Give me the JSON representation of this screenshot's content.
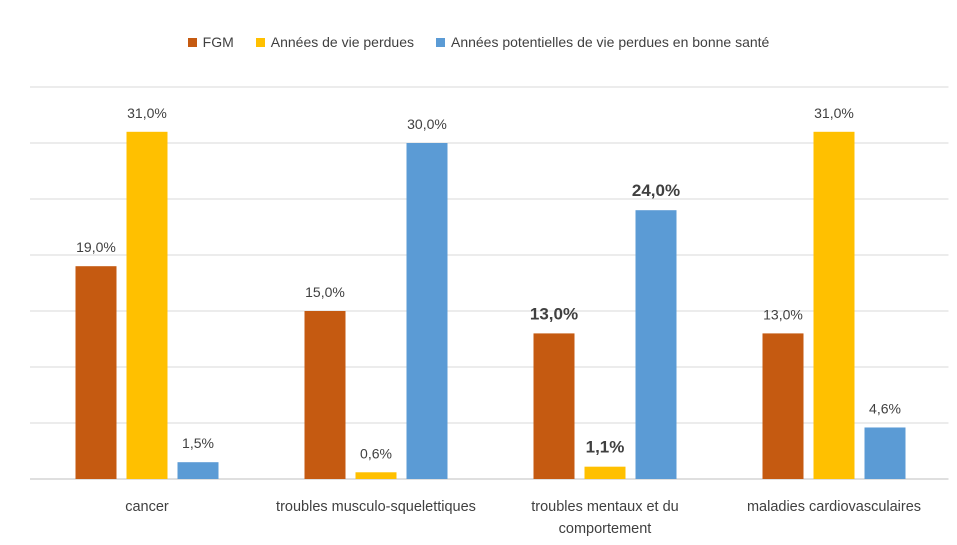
{
  "chart_data": {
    "type": "bar",
    "categories": [
      "cancer",
      "troubles musculo-squelettiques",
      "troubles mentaux et du comportement",
      "maladies cardiovasculaires"
    ],
    "series": [
      {
        "name": "FGM",
        "color": "#c55a11",
        "values": [
          19.0,
          15.0,
          13.0,
          13.0
        ],
        "value_labels": [
          "19,0%",
          "15,0%",
          "13,0%",
          "13,0%"
        ]
      },
      {
        "name": "Années de vie perdues",
        "color": "#ffc000",
        "values": [
          31.0,
          0.6,
          1.1,
          31.0
        ],
        "value_labels": [
          "31,0%",
          "0,6%",
          "1,1%",
          "31,0%"
        ]
      },
      {
        "name": "Années potentielles de vie perdues en bonne santé",
        "color": "#5b9bd5",
        "values": [
          1.5,
          30.0,
          24.0,
          4.6
        ],
        "value_labels": [
          "1,5%",
          "30,0%",
          "24,0%",
          "4,6%"
        ]
      }
    ],
    "ylim": [
      0,
      35
    ],
    "yticks": [
      0,
      5,
      10,
      15,
      20,
      25,
      30,
      35
    ],
    "grid": true,
    "legend": "top"
  }
}
